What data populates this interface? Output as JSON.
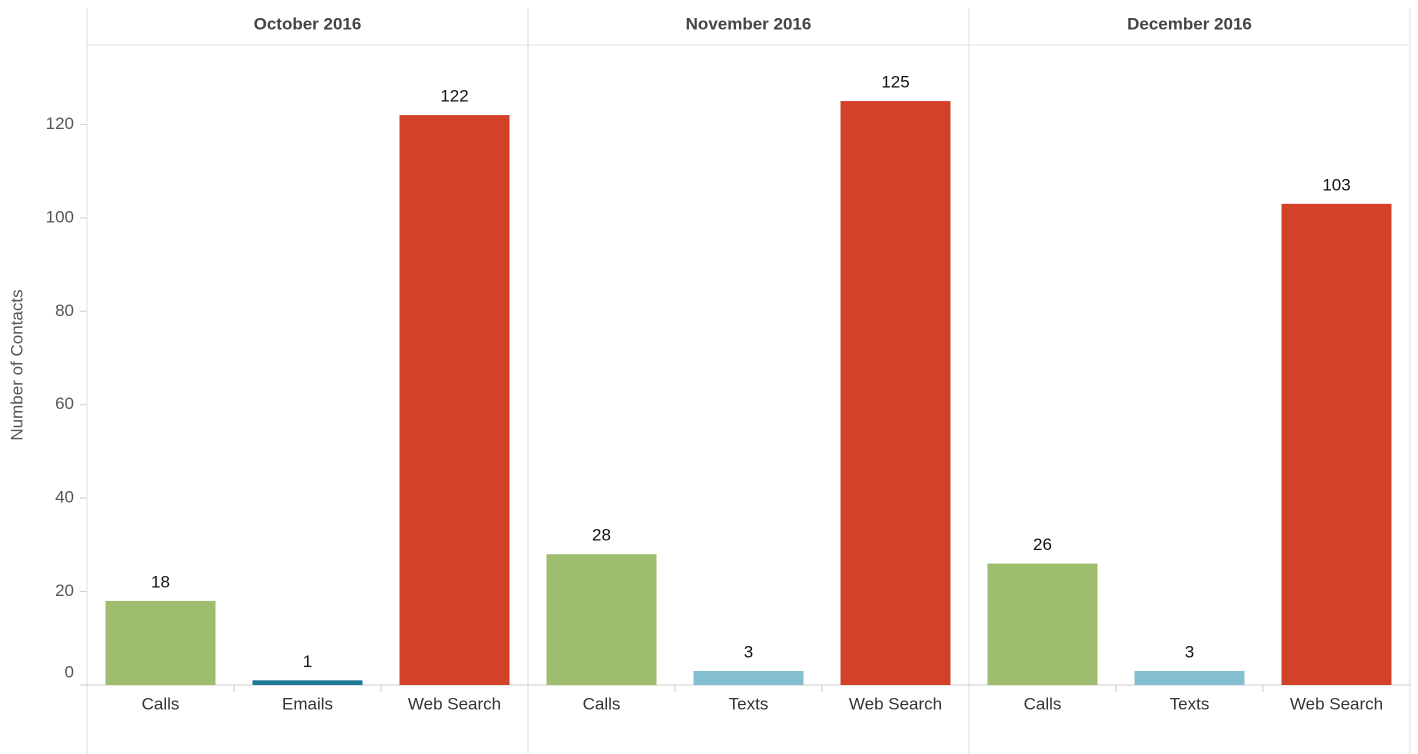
{
  "chart_data": {
    "type": "bar",
    "ylabel": "Number of Contacts",
    "ylim": [
      0,
      137
    ],
    "yticks": [
      0,
      20,
      40,
      60,
      80,
      100,
      120
    ],
    "panels": [
      {
        "title": "October 2016",
        "categories": [
          "Calls",
          "Emails",
          "Web Search"
        ],
        "values": [
          18,
          1,
          122
        ],
        "colors": [
          "#9fbd6e",
          "#1f7896",
          "#d34228"
        ]
      },
      {
        "title": "November 2016",
        "categories": [
          "Calls",
          "Texts",
          "Web Search"
        ],
        "values": [
          28,
          3,
          125
        ],
        "colors": [
          "#9fbd6e",
          "#84bfcf",
          "#d34228"
        ]
      },
      {
        "title": "December 2016",
        "categories": [
          "Calls",
          "Texts",
          "Web Search"
        ],
        "values": [
          26,
          3,
          103
        ],
        "colors": [
          "#9fbd6e",
          "#84bfcf",
          "#d34228"
        ]
      }
    ]
  }
}
